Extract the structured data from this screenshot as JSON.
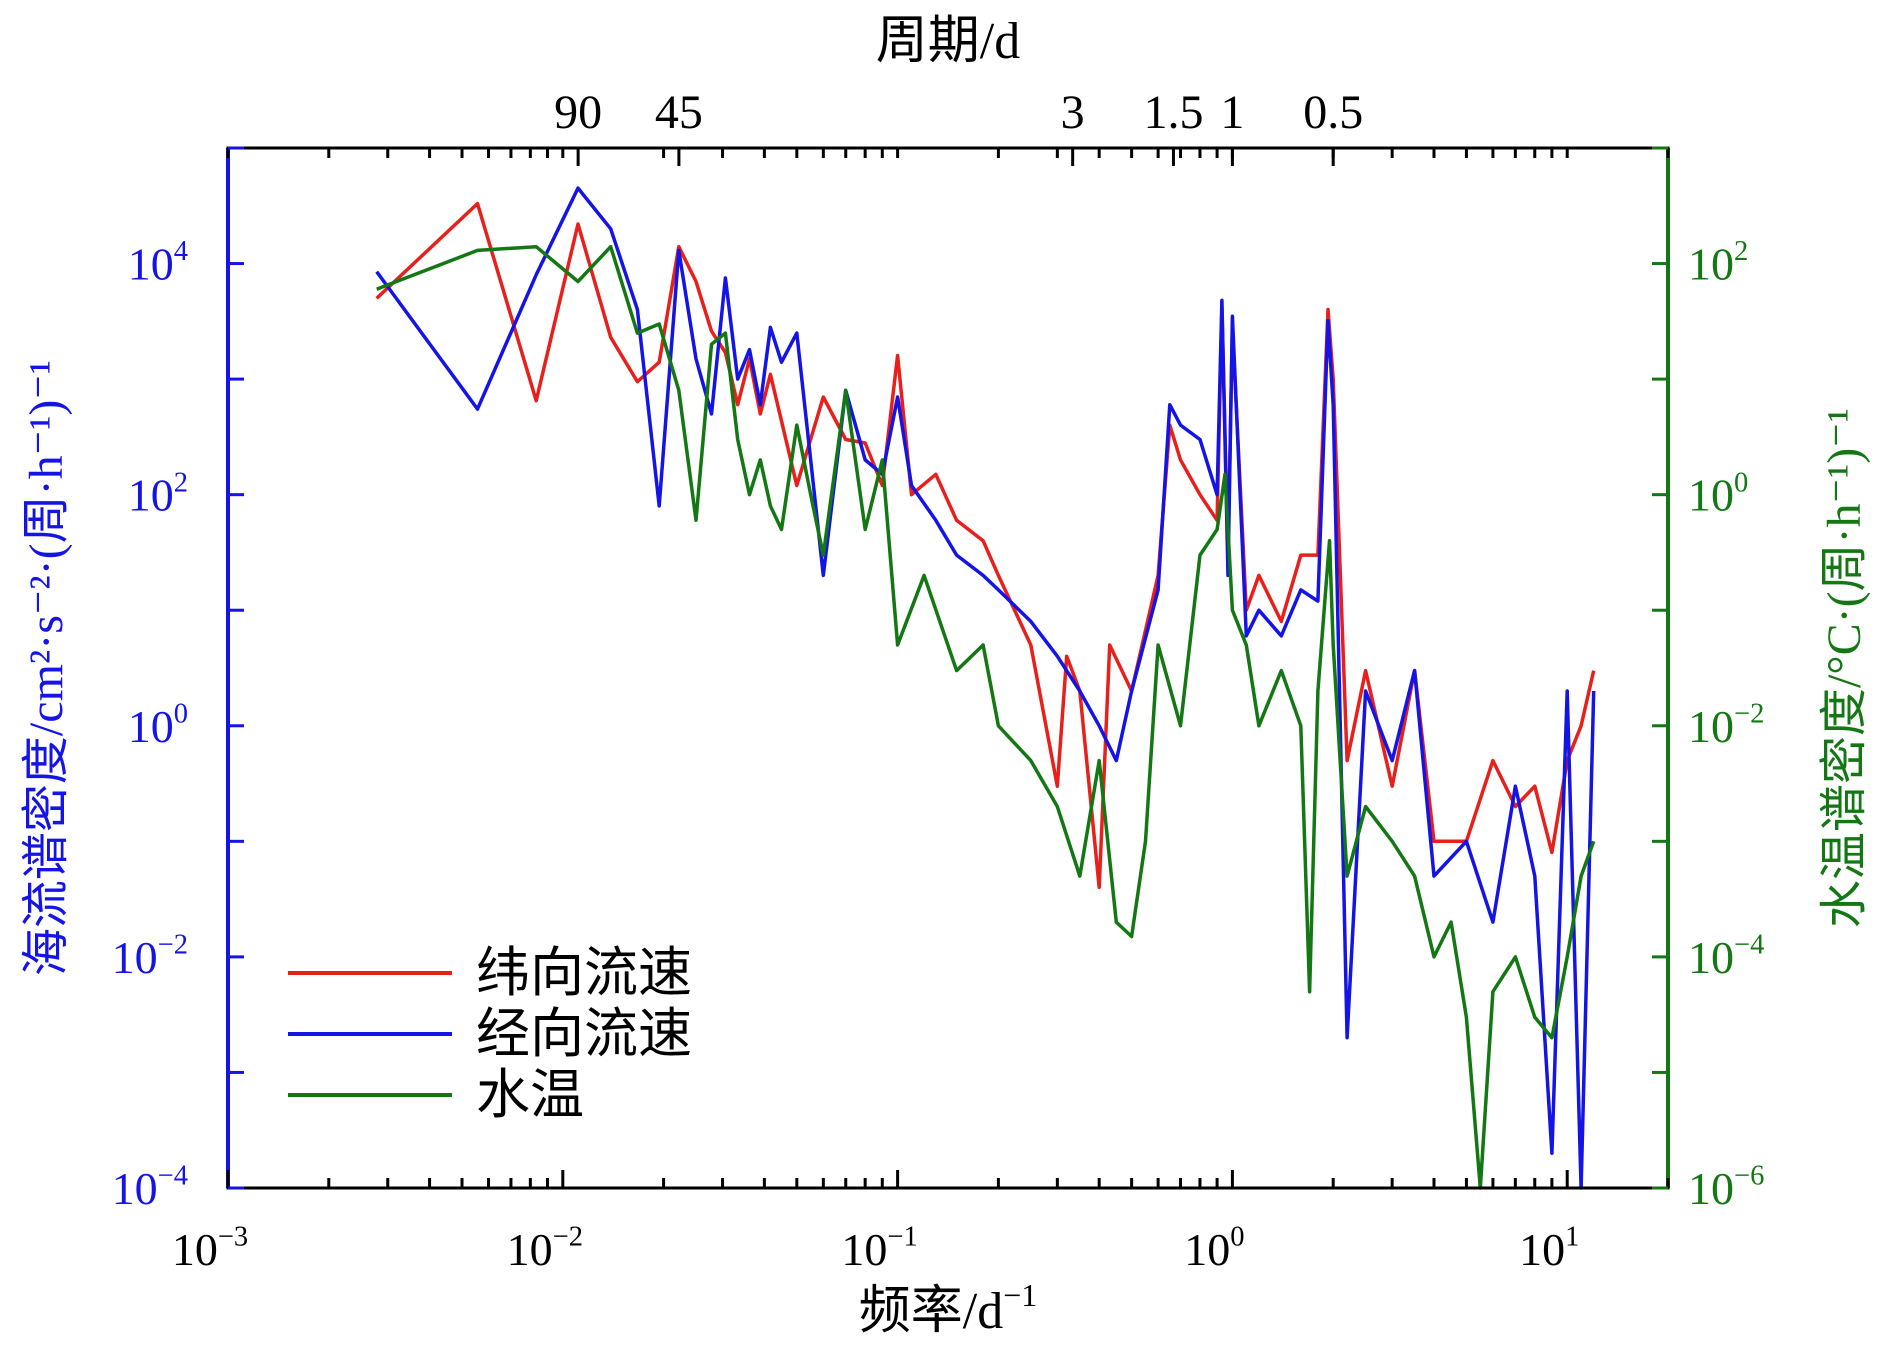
{
  "chart_data": {
    "type": "line",
    "x_scale": "log",
    "y_scale": "log",
    "xlim": [
      0.001,
      20
    ],
    "ylim_left": [
      0.0001,
      100000
    ],
    "ylim_right": [
      1e-06,
      1000
    ],
    "grid": false,
    "legend_position": "bottom-left",
    "xlabel": "频率/d",
    "xlabel_sup": "−1",
    "top_xlabel": "周期/d",
    "ylabel_left": "海流谱密度/cm²·s⁻²·(周·h⁻¹)⁻¹",
    "ylabel_right": "水温谱密度/°C·(周·h⁻¹)⁻¹",
    "x_ticks": [
      {
        "value": 0.001,
        "base": "10",
        "exp": "−3"
      },
      {
        "value": 0.01,
        "base": "10",
        "exp": "−2"
      },
      {
        "value": 0.1,
        "base": "10",
        "exp": "−1"
      },
      {
        "value": 1,
        "base": "10",
        "exp": "0"
      },
      {
        "value": 10,
        "base": "10",
        "exp": "1"
      }
    ],
    "top_ticks": [
      {
        "label": "90",
        "period_d": 90
      },
      {
        "label": "45",
        "period_d": 45
      },
      {
        "label": "3",
        "period_d": 3
      },
      {
        "label": "1.5",
        "period_d": 1.5
      },
      {
        "label": "1",
        "period_d": 1
      },
      {
        "label": "0.5",
        "period_d": 0.5
      }
    ],
    "left_ticks": [
      {
        "value": 10000,
        "base": "10",
        "exp": "4"
      },
      {
        "value": 100,
        "base": "10",
        "exp": "2"
      },
      {
        "value": 1,
        "base": "10",
        "exp": "0"
      },
      {
        "value": 0.01,
        "base": "10",
        "exp": "−2"
      },
      {
        "value": 0.0001,
        "base": "10",
        "exp": "−4"
      }
    ],
    "right_ticks": [
      {
        "value": 100,
        "base": "10",
        "exp": "2"
      },
      {
        "value": 1,
        "base": "10",
        "exp": "0"
      },
      {
        "value": 0.01,
        "base": "10",
        "exp": "−2"
      },
      {
        "value": 0.0001,
        "base": "10",
        "exp": "−4"
      },
      {
        "value": 1e-06,
        "base": "10",
        "exp": "−6"
      }
    ],
    "series": [
      {
        "name": "纬向流速",
        "color": "#e8201c",
        "axis": "left",
        "x": [
          0.00278,
          0.00556,
          0.00833,
          0.0111,
          0.0139,
          0.0167,
          0.0194,
          0.0222,
          0.025,
          0.0278,
          0.0306,
          0.0333,
          0.0361,
          0.0389,
          0.0417,
          0.05,
          0.06,
          0.07,
          0.08,
          0.09,
          0.1,
          0.11,
          0.13,
          0.15,
          0.18,
          0.2,
          0.25,
          0.3,
          0.32,
          0.35,
          0.4,
          0.43,
          0.5,
          0.6,
          0.65,
          0.7,
          0.8,
          0.9,
          0.93,
          0.97,
          1.0,
          1.1,
          1.2,
          1.4,
          1.6,
          1.8,
          1.93,
          2.0,
          2.2,
          2.5,
          3.0,
          3.5,
          4.0,
          5.0,
          6.0,
          7.0,
          8.0,
          9.0,
          10.0,
          11.0,
          12.0
        ],
        "values": [
          5000,
          33000,
          650,
          22000,
          2300,
          950,
          1400,
          14000,
          7000,
          2600,
          1700,
          600,
          1500,
          500,
          1100,
          120,
          700,
          300,
          280,
          120,
          1600,
          100,
          150,
          60,
          40,
          20,
          5,
          0.3,
          4,
          2,
          0.04,
          5,
          2,
          20,
          400,
          200,
          100,
          60,
          4200,
          30,
          2800,
          10,
          20,
          8,
          30,
          30,
          4000,
          1000,
          0.5,
          3,
          0.3,
          3,
          0.1,
          0.1,
          0.5,
          0.2,
          0.3,
          0.08,
          0.5,
          1,
          3
        ]
      },
      {
        "name": "经向流速",
        "color": "#1414e6",
        "axis": "left",
        "x": [
          0.00278,
          0.00556,
          0.00833,
          0.0111,
          0.0139,
          0.0167,
          0.0194,
          0.0222,
          0.025,
          0.0278,
          0.0306,
          0.0333,
          0.0361,
          0.0389,
          0.0417,
          0.045,
          0.05,
          0.06,
          0.07,
          0.08,
          0.09,
          0.1,
          0.11,
          0.13,
          0.15,
          0.18,
          0.2,
          0.25,
          0.3,
          0.35,
          0.4,
          0.45,
          0.5,
          0.6,
          0.65,
          0.7,
          0.8,
          0.9,
          0.93,
          0.97,
          1.0,
          1.1,
          1.2,
          1.4,
          1.6,
          1.8,
          1.93,
          2.0,
          2.2,
          2.5,
          3.0,
          3.5,
          4.0,
          5.0,
          6.0,
          7.0,
          8.0,
          9.0,
          10.0,
          11.0,
          12.0
        ],
        "values": [
          8500,
          550,
          8000,
          45000,
          20000,
          4000,
          80,
          13000,
          1500,
          500,
          7500,
          1000,
          1800,
          600,
          2800,
          1400,
          2500,
          20,
          800,
          200,
          150,
          700,
          120,
          60,
          30,
          20,
          15,
          8,
          4,
          2,
          1,
          0.5,
          2,
          15,
          600,
          400,
          300,
          100,
          4800,
          20,
          3500,
          6,
          10,
          6,
          15,
          12,
          3200,
          600,
          0.002,
          2,
          0.5,
          3,
          0.05,
          0.1,
          0.02,
          0.3,
          0.05,
          0.0002,
          2,
          0.0001,
          2
        ]
      },
      {
        "name": "水温",
        "color": "#137813",
        "axis": "right",
        "x": [
          0.00278,
          0.00556,
          0.00833,
          0.0111,
          0.0139,
          0.0167,
          0.0194,
          0.0222,
          0.025,
          0.0278,
          0.0306,
          0.0333,
          0.0361,
          0.0389,
          0.0417,
          0.045,
          0.05,
          0.055,
          0.06,
          0.07,
          0.08,
          0.09,
          0.1,
          0.12,
          0.15,
          0.18,
          0.2,
          0.25,
          0.3,
          0.35,
          0.4,
          0.45,
          0.5,
          0.55,
          0.6,
          0.7,
          0.8,
          0.9,
          0.95,
          1.0,
          1.1,
          1.2,
          1.4,
          1.6,
          1.7,
          1.8,
          1.95,
          2.0,
          2.2,
          2.5,
          3.0,
          3.5,
          4.0,
          4.5,
          5.0,
          5.5,
          6.0,
          7.0,
          8.0,
          9.0,
          10.0,
          11.0,
          12.0
        ],
        "values": [
          60,
          130,
          140,
          70,
          140,
          25,
          30,
          8,
          0.6,
          20,
          25,
          3,
          1,
          2,
          0.8,
          0.5,
          4,
          1,
          0.3,
          8,
          0.5,
          2,
          0.05,
          0.2,
          0.03,
          0.05,
          0.01,
          0.005,
          0.002,
          0.0005,
          0.005,
          0.0002,
          0.00015,
          0.001,
          0.05,
          0.01,
          0.3,
          0.5,
          1.5,
          0.1,
          0.05,
          0.01,
          0.03,
          0.01,
          5e-05,
          0.02,
          0.4,
          0.05,
          0.0005,
          0.002,
          0.001,
          0.0005,
          0.0001,
          0.0002,
          3e-05,
          1e-06,
          5e-05,
          0.0001,
          3e-05,
          2e-05,
          0.0001,
          0.0005,
          0.001
        ]
      }
    ]
  }
}
